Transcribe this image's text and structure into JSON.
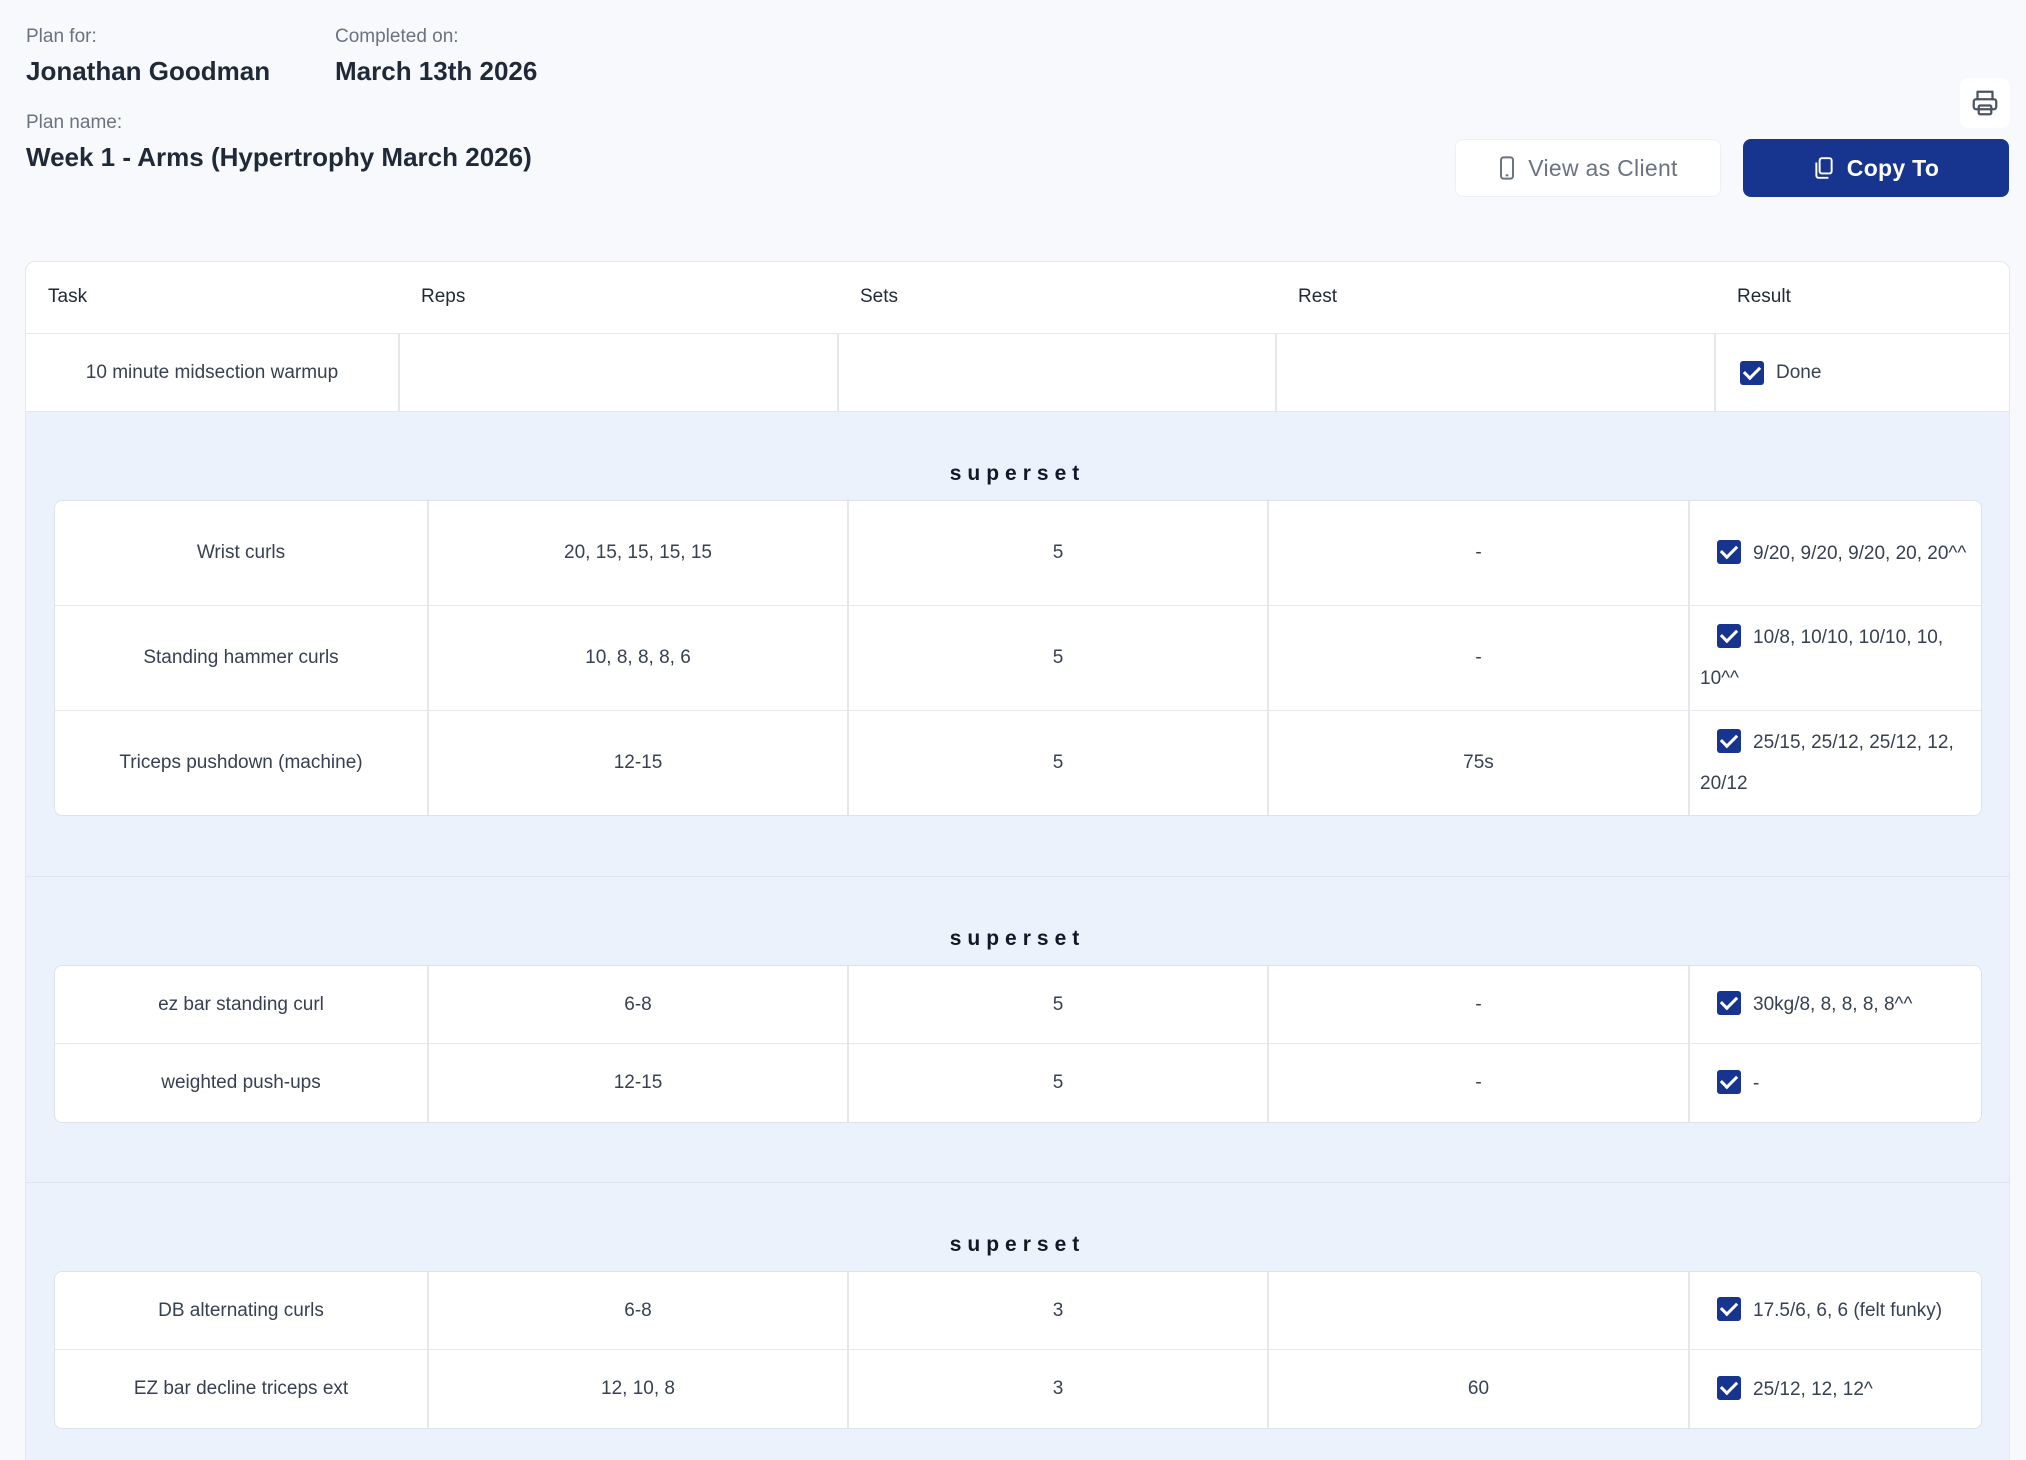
{
  "plan_for": {
    "label": "Plan for:",
    "value": "Jonathan Goodman"
  },
  "completed_on": {
    "label": "Completed on:",
    "value": "March 13th 2026"
  },
  "plan_name": {
    "label": "Plan name:",
    "value": "Week 1 - Arms (Hypertrophy March 2026)"
  },
  "actions": {
    "view_as_client": "View as Client",
    "copy_to": "Copy To"
  },
  "icons": {
    "print": "printer-icon",
    "view": "phone-icon",
    "copy": "copy-icon",
    "check": "checkbox-checked-icon"
  },
  "colors": {
    "primary": "#17358f",
    "superset_bg": "#ecf2fb"
  },
  "columns": {
    "task": "Task",
    "reps": "Reps",
    "sets": "Sets",
    "rest": "Rest",
    "result": "Result"
  },
  "warmup": {
    "task": "10 minute midsection warmup",
    "reps": "",
    "sets": "",
    "rest": "",
    "result": "Done"
  },
  "supersets": [
    {
      "title": "superset",
      "rows": [
        {
          "task": "Wrist curls",
          "reps": "20, 15, 15, 15, 15",
          "sets": "5",
          "rest": "-",
          "result": "9/20, 9/20, 9/20, 20, 20^^"
        },
        {
          "task": "Standing hammer curls",
          "reps": "10, 8, 8, 8, 6",
          "sets": "5",
          "rest": "-",
          "result": "10/8, 10/10, 10/10, 10, 10^^"
        },
        {
          "task": "Triceps pushdown (machine)",
          "reps": "12-15",
          "sets": "5",
          "rest": "75s",
          "result": "25/15, 25/12, 25/12, 12, 20/12"
        }
      ]
    },
    {
      "title": "superset",
      "rows": [
        {
          "task": "ez bar standing curl",
          "reps": "6-8",
          "sets": "5",
          "rest": "-",
          "result": "30kg/8, 8, 8, 8, 8^^"
        },
        {
          "task": "weighted push-ups",
          "reps": "12-15",
          "sets": "5",
          "rest": "-",
          "result": "-"
        }
      ]
    },
    {
      "title": "superset",
      "rows": [
        {
          "task": "DB alternating curls",
          "reps": "6-8",
          "sets": "3",
          "rest": "",
          "result": "17.5/6, 6, 6 (felt funky)"
        },
        {
          "task": "EZ bar decline triceps ext",
          "reps": "12, 10, 8",
          "sets": "3",
          "rest": "60",
          "result": "25/12, 12, 12^"
        }
      ]
    }
  ]
}
